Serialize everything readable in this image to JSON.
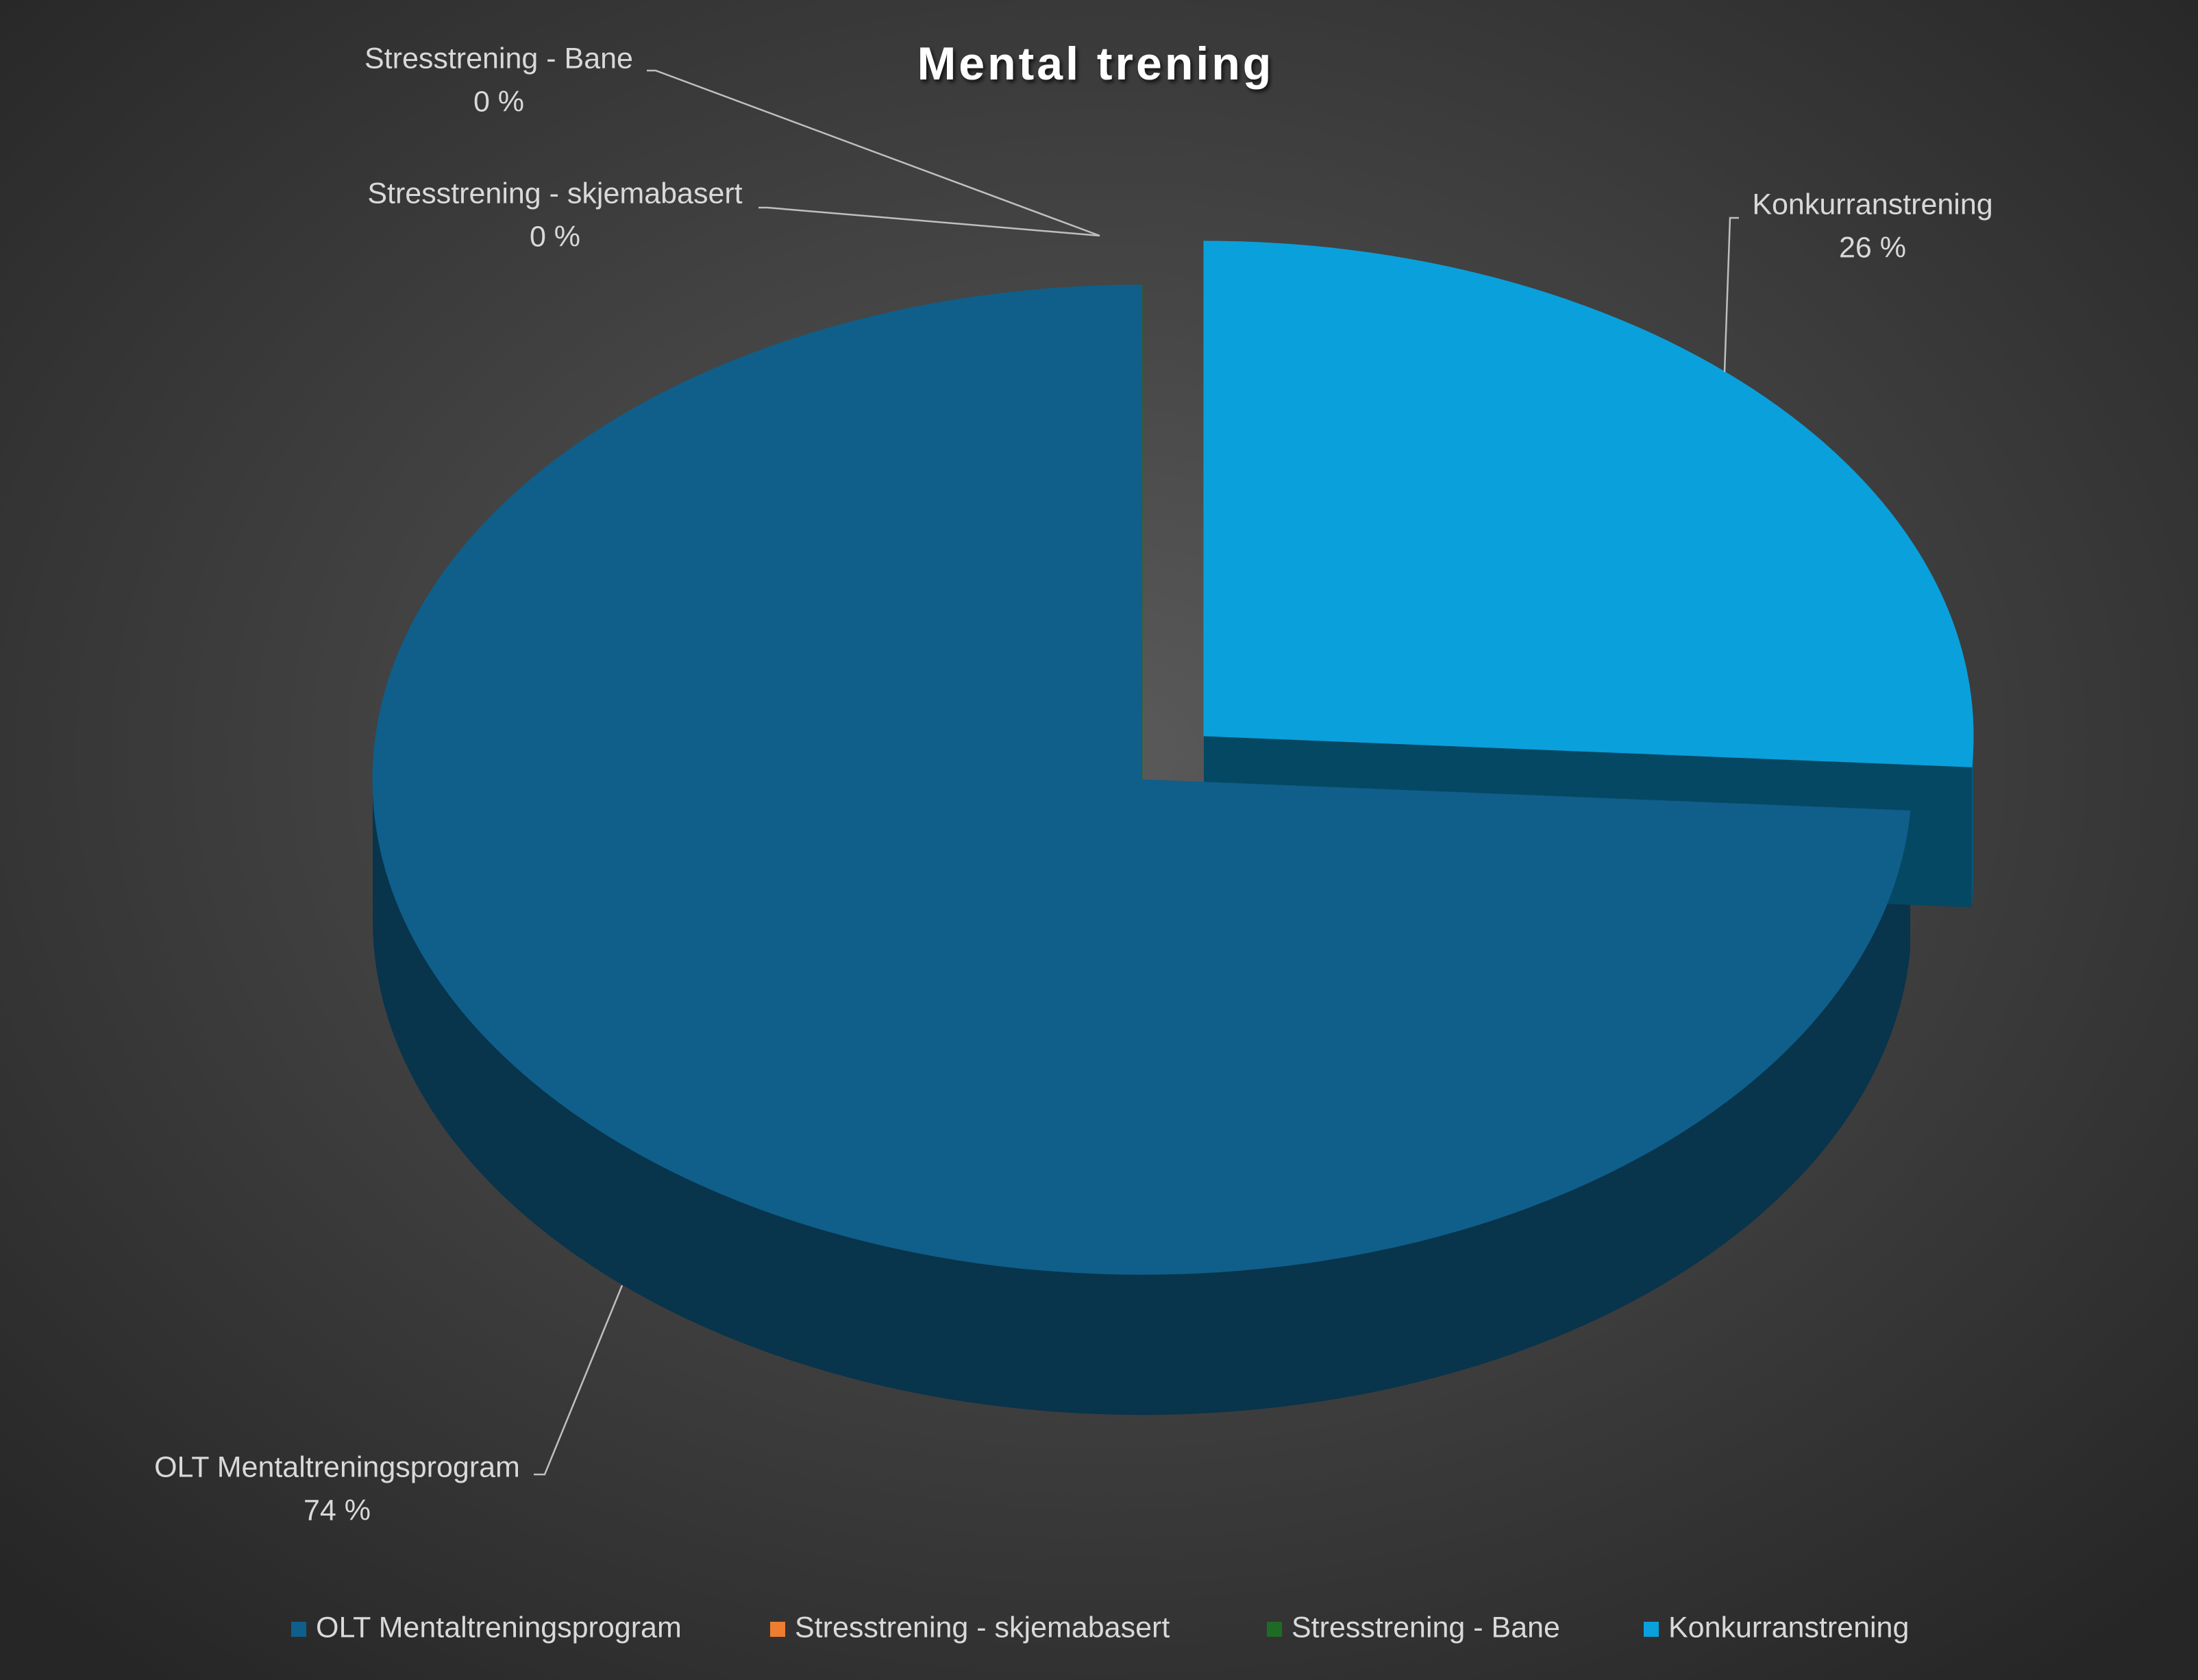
{
  "chart_data": {
    "type": "pie",
    "title": "Mental trening",
    "categories": [
      "OLT Mentaltreningsprogram",
      "Stresstrening  - skjemabasert",
      "Stresstrening - Bane",
      "Konkurranstrening"
    ],
    "values": [
      74,
      0,
      0,
      26
    ],
    "value_labels": [
      "74 %",
      "0 %",
      "0 %",
      "26 %"
    ],
    "colors": [
      "#0f5f8a",
      "#ed7d31",
      "#1e6b25",
      "#0aa0dc"
    ],
    "legend": "bottom"
  }
}
